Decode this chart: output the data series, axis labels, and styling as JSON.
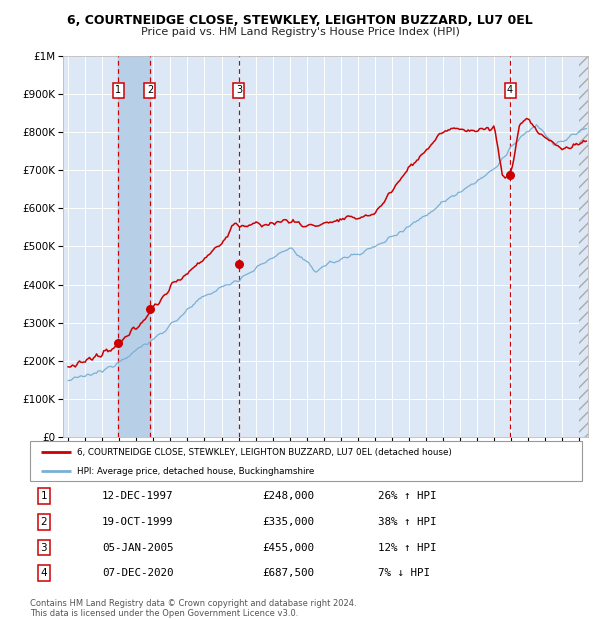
{
  "title": "6, COURTNEIDGE CLOSE, STEWKLEY, LEIGHTON BUZZARD, LU7 0EL",
  "subtitle": "Price paid vs. HM Land Registry's House Price Index (HPI)",
  "ylim": [
    0,
    1000000
  ],
  "yticks": [
    0,
    100000,
    200000,
    300000,
    400000,
    500000,
    600000,
    700000,
    800000,
    900000,
    1000000
  ],
  "ytick_labels": [
    "£0",
    "£100K",
    "£200K",
    "£300K",
    "£400K",
    "£500K",
    "£600K",
    "£700K",
    "£800K",
    "£900K",
    "£1M"
  ],
  "xlim_start": 1994.7,
  "xlim_end": 2025.5,
  "plot_bg_color": "#dce8f5",
  "grid_color": "#ffffff",
  "red_line_color": "#cc0000",
  "blue_line_color": "#7ab0d4",
  "sale_marker_color": "#cc0000",
  "sale_dates": [
    1997.95,
    1999.8,
    2005.02,
    2020.93
  ],
  "sale_prices": [
    248000,
    335000,
    455000,
    687500
  ],
  "vline_color": "#cc0000",
  "shade_x1": 1997.95,
  "shade_x2": 1999.8,
  "shade_color": "#b8cfe8",
  "transactions": [
    {
      "num": 1,
      "date": "12-DEC-1997",
      "price": "£248,000",
      "hpi": "26% ↑ HPI"
    },
    {
      "num": 2,
      "date": "19-OCT-1999",
      "price": "£335,000",
      "hpi": "38% ↑ HPI"
    },
    {
      "num": 3,
      "date": "05-JAN-2005",
      "price": "£455,000",
      "hpi": "12% ↑ HPI"
    },
    {
      "num": 4,
      "date": "07-DEC-2020",
      "price": "£687,500",
      "hpi": "7% ↓ HPI"
    }
  ],
  "legend_line1": "6, COURTNEIDGE CLOSE, STEWKLEY, LEIGHTON BUZZARD, LU7 0EL (detached house)",
  "legend_line2": "HPI: Average price, detached house, Buckinghamshire",
  "footer": "Contains HM Land Registry data © Crown copyright and database right 2024.\nThis data is licensed under the Open Government Licence v3.0."
}
